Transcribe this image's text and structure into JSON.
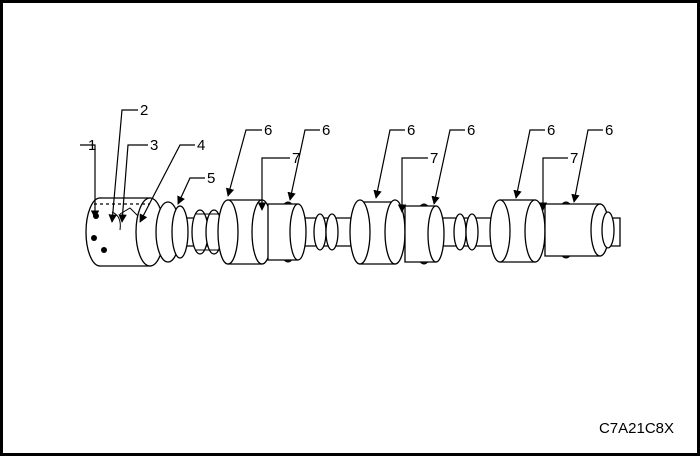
{
  "figure": {
    "code": "C7A21C8X",
    "callouts": [
      {
        "id": "c1",
        "label": "1"
      },
      {
        "id": "c2",
        "label": "2"
      },
      {
        "id": "c3",
        "label": "3"
      },
      {
        "id": "c4",
        "label": "4"
      },
      {
        "id": "c5",
        "label": "5"
      },
      {
        "id": "c6a",
        "label": "6"
      },
      {
        "id": "c6b",
        "label": "6"
      },
      {
        "id": "c7a",
        "label": "7"
      },
      {
        "id": "c6c",
        "label": "6"
      },
      {
        "id": "c6d",
        "label": "6"
      },
      {
        "id": "c7b",
        "label": "7"
      },
      {
        "id": "c6e",
        "label": "6"
      },
      {
        "id": "c6f",
        "label": "6"
      },
      {
        "id": "c7c",
        "label": "7"
      }
    ]
  }
}
